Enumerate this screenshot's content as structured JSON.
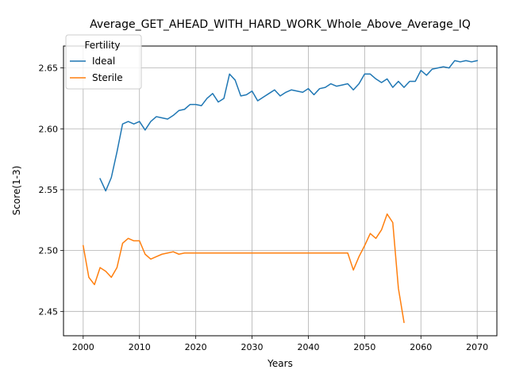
{
  "chart_data": {
    "type": "line",
    "title": "Average_GET_AHEAD_WITH_HARD_WORK_Whole_Above_Average_IQ",
    "xlabel": "Years",
    "ylabel": "Score(1-3)",
    "xlim": [
      1996.5,
      2073.5
    ],
    "ylim": [
      2.43,
      2.668
    ],
    "xticks": [
      2000,
      2010,
      2020,
      2030,
      2040,
      2050,
      2060,
      2070
    ],
    "yticks": [
      2.45,
      2.5,
      2.55,
      2.6,
      2.65
    ],
    "xtick_labels": [
      "2000",
      "2010",
      "2020",
      "2030",
      "2040",
      "2050",
      "2060",
      "2070"
    ],
    "ytick_labels": [
      "2.45",
      "2.50",
      "2.55",
      "2.60",
      "2.65"
    ],
    "grid": true,
    "legend": {
      "title": "Fertility",
      "placement": "top-left"
    },
    "series": [
      {
        "name": "Ideal",
        "color": "#1f77b4",
        "points": [
          [
            2003,
            2.559
          ],
          [
            2004,
            2.549
          ],
          [
            2005,
            2.56
          ],
          [
            2006,
            2.581
          ],
          [
            2007,
            2.604
          ],
          [
            2008,
            2.606
          ],
          [
            2009,
            2.604
          ],
          [
            2010,
            2.606
          ],
          [
            2011,
            2.599
          ],
          [
            2012,
            2.606
          ],
          [
            2013,
            2.61
          ],
          [
            2014,
            2.609
          ],
          [
            2015,
            2.608
          ],
          [
            2016,
            2.611
          ],
          [
            2017,
            2.615
          ],
          [
            2018,
            2.616
          ],
          [
            2019,
            2.62
          ],
          [
            2020,
            2.62
          ],
          [
            2021,
            2.619
          ],
          [
            2022,
            2.625
          ],
          [
            2023,
            2.629
          ],
          [
            2024,
            2.622
          ],
          [
            2025,
            2.625
          ],
          [
            2026,
            2.645
          ],
          [
            2027,
            2.64
          ],
          [
            2028,
            2.627
          ],
          [
            2029,
            2.628
          ],
          [
            2030,
            2.631
          ],
          [
            2031,
            2.623
          ],
          [
            2032,
            2.626
          ],
          [
            2033,
            2.629
          ],
          [
            2034,
            2.632
          ],
          [
            2035,
            2.627
          ],
          [
            2036,
            2.63
          ],
          [
            2037,
            2.632
          ],
          [
            2038,
            2.631
          ],
          [
            2039,
            2.63
          ],
          [
            2040,
            2.633
          ],
          [
            2041,
            2.628
          ],
          [
            2042,
            2.633
          ],
          [
            2043,
            2.634
          ],
          [
            2044,
            2.637
          ],
          [
            2045,
            2.635
          ],
          [
            2046,
            2.636
          ],
          [
            2047,
            2.637
          ],
          [
            2048,
            2.632
          ],
          [
            2049,
            2.637
          ],
          [
            2050,
            2.645
          ],
          [
            2051,
            2.645
          ],
          [
            2052,
            2.641
          ],
          [
            2053,
            2.638
          ],
          [
            2054,
            2.641
          ],
          [
            2055,
            2.634
          ],
          [
            2056,
            2.639
          ],
          [
            2057,
            2.634
          ],
          [
            2058,
            2.639
          ],
          [
            2059,
            2.639
          ],
          [
            2060,
            2.648
          ],
          [
            2061,
            2.644
          ],
          [
            2062,
            2.649
          ],
          [
            2063,
            2.65
          ],
          [
            2064,
            2.651
          ],
          [
            2065,
            2.65
          ],
          [
            2066,
            2.656
          ],
          [
            2067,
            2.655
          ],
          [
            2068,
            2.656
          ],
          [
            2069,
            2.655
          ],
          [
            2070,
            2.656
          ]
        ]
      },
      {
        "name": "Sterile",
        "color": "#ff7f0e",
        "points": [
          [
            2000,
            2.504
          ],
          [
            2001,
            2.478
          ],
          [
            2002,
            2.472
          ],
          [
            2003,
            2.486
          ],
          [
            2004,
            2.483
          ],
          [
            2005,
            2.478
          ],
          [
            2006,
            2.486
          ],
          [
            2007,
            2.506
          ],
          [
            2008,
            2.51
          ],
          [
            2009,
            2.508
          ],
          [
            2010,
            2.508
          ],
          [
            2011,
            2.497
          ],
          [
            2012,
            2.493
          ],
          [
            2013,
            2.495
          ],
          [
            2014,
            2.497
          ],
          [
            2015,
            2.498
          ],
          [
            2016,
            2.499
          ],
          [
            2017,
            2.497
          ],
          [
            2018,
            2.498
          ],
          [
            2019,
            2.498
          ],
          [
            2020,
            2.498
          ],
          [
            2025,
            2.498
          ],
          [
            2030,
            2.498
          ],
          [
            2035,
            2.498
          ],
          [
            2040,
            2.498
          ],
          [
            2045,
            2.498
          ],
          [
            2047,
            2.498
          ],
          [
            2048,
            2.484
          ],
          [
            2049,
            2.495
          ],
          [
            2050,
            2.504
          ],
          [
            2051,
            2.514
          ],
          [
            2052,
            2.51
          ],
          [
            2053,
            2.517
          ],
          [
            2054,
            2.53
          ],
          [
            2055,
            2.523
          ],
          [
            2056,
            2.469
          ],
          [
            2057,
            2.441
          ]
        ]
      }
    ]
  }
}
